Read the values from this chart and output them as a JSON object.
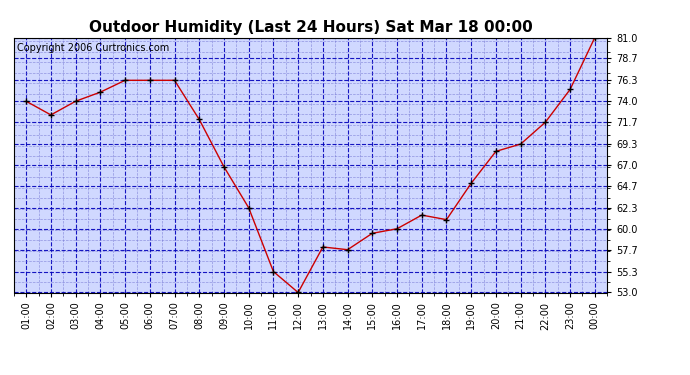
{
  "title": "Outdoor Humidity (Last 24 Hours) Sat Mar 18 00:00",
  "copyright": "Copyright 2006 Curtronics.com",
  "x_labels": [
    "01:00",
    "02:00",
    "03:00",
    "04:00",
    "05:00",
    "06:00",
    "07:00",
    "08:00",
    "09:00",
    "10:00",
    "11:00",
    "12:00",
    "13:00",
    "14:00",
    "15:00",
    "16:00",
    "17:00",
    "18:00",
    "19:00",
    "20:00",
    "21:00",
    "22:00",
    "23:00",
    "00:00"
  ],
  "x_values": [
    1,
    2,
    3,
    4,
    5,
    6,
    7,
    8,
    9,
    10,
    11,
    12,
    13,
    14,
    15,
    16,
    17,
    18,
    19,
    20,
    21,
    22,
    23,
    24
  ],
  "y_values": [
    74.0,
    72.5,
    74.0,
    75.0,
    76.3,
    76.3,
    76.3,
    72.0,
    66.8,
    62.3,
    55.3,
    53.0,
    58.0,
    57.7,
    59.5,
    60.0,
    61.5,
    61.0,
    65.0,
    68.5,
    69.3,
    71.7,
    75.3,
    81.0
  ],
  "ylim": [
    53.0,
    81.0
  ],
  "yticks": [
    53.0,
    55.3,
    57.7,
    60.0,
    62.3,
    64.7,
    67.0,
    69.3,
    71.7,
    74.0,
    76.3,
    78.7,
    81.0
  ],
  "line_color": "#cc0000",
  "marker_color": "#000000",
  "background_color": "#ffffff",
  "plot_bg_color": "#d0d8ff",
  "grid_major_color": "#0000bb",
  "grid_minor_color": "#6666cc",
  "title_fontsize": 11,
  "copyright_fontsize": 7,
  "tick_fontsize": 7,
  "border_color": "#000000",
  "figsize": [
    6.9,
    3.75
  ],
  "dpi": 100
}
